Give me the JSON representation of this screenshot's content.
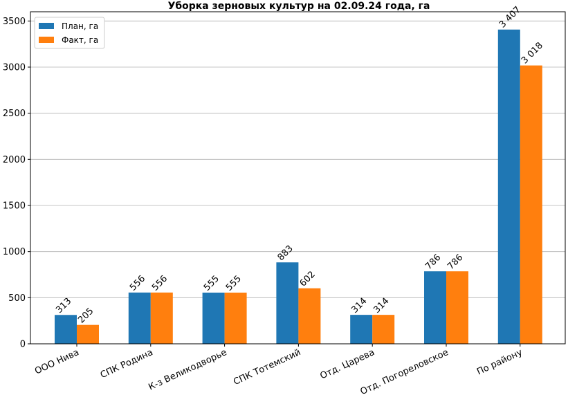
{
  "chart_data": {
    "type": "bar",
    "title": "Уборка зерновых культур на 02.09.24 года, га",
    "xlabel": "",
    "ylabel": "",
    "categories": [
      "ООО Нива",
      "СПК Родина",
      "К-з Великодворье",
      "СПК Тотемский",
      "Отд. Царева",
      "Отд. Погореловское",
      "По району"
    ],
    "series": [
      {
        "name": "План, га",
        "color": "#1f77b4",
        "values": [
          313,
          556,
          555,
          883,
          314,
          786,
          3407
        ],
        "labels": [
          "313",
          "556",
          "555",
          "883",
          "314",
          "786",
          "3 407"
        ]
      },
      {
        "name": "Факт, га",
        "color": "#ff7f0e",
        "values": [
          205,
          556,
          555,
          602,
          314,
          786,
          3018
        ],
        "labels": [
          "205",
          "556",
          "555",
          "602",
          "314",
          "786",
          "3 018"
        ]
      }
    ],
    "ylim": [
      0,
      3600
    ],
    "yticks": [
      0,
      500,
      1000,
      1500,
      2000,
      2500,
      3000,
      3500
    ],
    "grid": "horizontal",
    "legend_position": "top-left"
  }
}
